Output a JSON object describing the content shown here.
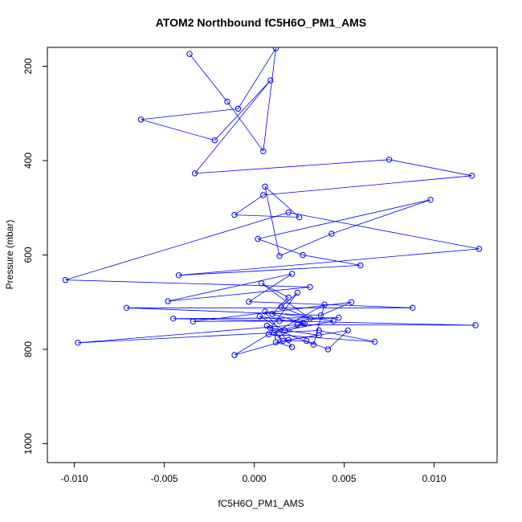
{
  "chart_data": {
    "type": "scatter",
    "title": "ATOM2 Northbound fC5H6O_PM1_AMS",
    "xlabel": "fC5H6O_PM1_AMS",
    "ylabel": "Pressure (mbar)",
    "xlim": [
      -0.0115,
      0.0135
    ],
    "ylim": [
      1040,
      160
    ],
    "y_reversed": true,
    "x_ticks": [
      -0.01,
      -0.005,
      0.0,
      0.005,
      0.01
    ],
    "x_tick_labels": [
      "-0.010",
      "-0.005",
      "0.000",
      "0.005",
      "0.010"
    ],
    "y_ticks": [
      200,
      400,
      600,
      800,
      1000
    ],
    "y_tick_labels": [
      "200",
      "400",
      "600",
      "800",
      "1000"
    ],
    "grid": false,
    "legend": "none",
    "colors": {
      "series": "#0000ff",
      "axis": "#000000",
      "background": "#ffffff"
    },
    "series": [
      {
        "marker": "open-circle",
        "line": true,
        "x": [
          -0.0036,
          -0.0015,
          0.0005,
          0.0012,
          -0.0009,
          -0.0063,
          -0.0022,
          0.0009,
          -0.0033,
          0.0075,
          0.0121,
          0.0005,
          -0.0011,
          0.0025,
          0.0006,
          0.0014,
          0.0043,
          0.0098,
          0.0002,
          0.0027,
          0.0059,
          -0.0042,
          0.0125,
          0.0019,
          -0.0105,
          0.0031,
          -0.0048,
          0.0021,
          -0.0003,
          0.0088,
          -0.0071,
          0.0037,
          0.0054,
          -0.0034,
          0.0014,
          0.0047,
          -0.0045,
          0.0123,
          0.0024,
          -0.0098,
          0.0036,
          0.0067,
          0.0008,
          -0.0011,
          0.0019,
          0.0052,
          0.0041,
          0.0029,
          0.0016,
          0.0007,
          0.0033,
          0.0039,
          0.0011,
          0.0028,
          0.001,
          0.0019,
          0.0004,
          0.0031,
          0.0015,
          0.0024,
          0.0009,
          0.0036,
          0.0012,
          0.0021,
          0.0006,
          0.0044,
          0.0017,
          0.0003,
          0.0027,
          0.0013
        ],
        "y": [
          174,
          275,
          380,
          162,
          290,
          313,
          357,
          230,
          427,
          398,
          432,
          473,
          515,
          520,
          455,
          602,
          555,
          483,
          566,
          600,
          622,
          643,
          587,
          510,
          653,
          668,
          698,
          640,
          699,
          712,
          712,
          728,
          700,
          741,
          740,
          733,
          735,
          749,
          748,
          786,
          760,
          784,
          768,
          812,
          780,
          760,
          800,
          782,
          782,
          750,
          790,
          705,
          765,
          745,
          725,
          690,
          660,
          735,
          710,
          680,
          755,
          770,
          785,
          795,
          720,
          740,
          760,
          730,
          745,
          775
        ]
      }
    ]
  }
}
